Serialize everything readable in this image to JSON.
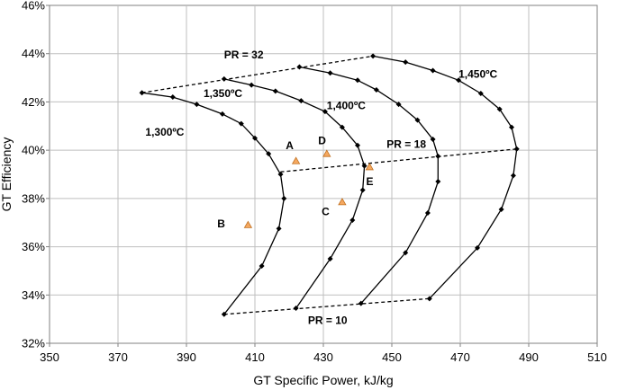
{
  "chart_data": {
    "type": "line",
    "title": "",
    "xlabel": "GT Specific Power, kJ/kg",
    "ylabel": "GT Efficiency",
    "xlim": [
      350,
      510
    ],
    "ylim": [
      32,
      46
    ],
    "xticks": [
      350,
      370,
      390,
      410,
      430,
      450,
      470,
      490,
      510
    ],
    "yticks": [
      32,
      34,
      36,
      38,
      40,
      42,
      44,
      46
    ],
    "xtick_labels": [
      "350",
      "370",
      "390",
      "410",
      "430",
      "450",
      "470",
      "490",
      "510"
    ],
    "ytick_labels": [
      "32%",
      "34%",
      "36%",
      "38%",
      "40%",
      "42%",
      "44%",
      "46%"
    ],
    "grid": true,
    "legend": "none",
    "series": [
      {
        "label": "1,300ºC",
        "label_pos": [
          378,
          40.6
        ],
        "style": "solid-diamond",
        "points": [
          [
            377,
            42.38
          ],
          [
            386,
            42.2
          ],
          [
            393,
            41.9
          ],
          [
            400.5,
            41.5
          ],
          [
            406,
            41.1
          ],
          [
            410,
            40.5
          ],
          [
            414,
            39.85
          ],
          [
            417.5,
            39.0
          ],
          [
            418.5,
            38.0
          ],
          [
            417,
            36.75
          ],
          [
            412,
            35.2
          ],
          [
            401,
            33.2
          ]
        ]
      },
      {
        "label": "1,350ºC",
        "label_pos": [
          395,
          42.2
        ],
        "style": "solid-diamond",
        "points": [
          [
            401,
            42.95
          ],
          [
            409,
            42.7
          ],
          [
            416,
            42.45
          ],
          [
            423.5,
            42.05
          ],
          [
            430.5,
            41.6
          ],
          [
            435.5,
            40.95
          ],
          [
            440,
            40.2
          ],
          [
            442,
            39.35
          ],
          [
            441.5,
            38.35
          ],
          [
            438.5,
            37.1
          ],
          [
            432,
            35.5
          ],
          [
            422,
            33.45
          ]
        ]
      },
      {
        "label": "1,400ºC",
        "label_pos": [
          431,
          41.7
        ],
        "style": "solid-diamond",
        "points": [
          [
            423,
            43.45
          ],
          [
            432,
            43.2
          ],
          [
            440,
            42.9
          ],
          [
            445.5,
            42.5
          ],
          [
            452,
            41.9
          ],
          [
            457.5,
            41.25
          ],
          [
            462,
            40.45
          ],
          [
            463.5,
            39.75
          ],
          [
            463.5,
            38.7
          ],
          [
            460.5,
            37.4
          ],
          [
            454,
            35.75
          ],
          [
            441,
            33.65
          ]
        ]
      },
      {
        "label": "1,450ºC",
        "label_pos": [
          469.5,
          43.0
        ],
        "style": "solid-diamond",
        "points": [
          [
            444.5,
            43.9
          ],
          [
            454,
            43.65
          ],
          [
            462,
            43.3
          ],
          [
            469.5,
            42.9
          ],
          [
            476,
            42.35
          ],
          [
            481.5,
            41.7
          ],
          [
            485,
            40.95
          ],
          [
            486.5,
            40.05
          ],
          [
            485.5,
            38.95
          ],
          [
            482,
            37.55
          ],
          [
            475,
            35.95
          ],
          [
            461,
            33.85
          ]
        ]
      },
      {
        "label": "PR = 32",
        "label_pos": [
          401,
          43.8
        ],
        "style": "dashed",
        "points": [
          [
            377,
            42.38
          ],
          [
            444.5,
            43.9
          ]
        ]
      },
      {
        "label": "PR = 18",
        "label_pos": [
          448.5,
          40.1
        ],
        "style": "dashed",
        "points": [
          [
            417.5,
            39.1
          ],
          [
            486.5,
            40.05
          ]
        ]
      },
      {
        "label": "PR = 10",
        "label_pos": [
          425.5,
          32.8
        ],
        "style": "dashed",
        "points": [
          [
            401,
            33.2
          ],
          [
            461,
            33.85
          ]
        ]
      }
    ],
    "annotations": [
      {
        "label": "A",
        "x": 422,
        "y": 39.55,
        "label_pos": [
          419,
          40.05
        ]
      },
      {
        "label": "B",
        "x": 408,
        "y": 36.9,
        "label_pos": [
          399,
          36.8
        ]
      },
      {
        "label": "C",
        "x": 435.5,
        "y": 37.85,
        "label_pos": [
          429.5,
          37.3
        ]
      },
      {
        "label": "D",
        "x": 431,
        "y": 39.85,
        "label_pos": [
          428.5,
          40.25
        ]
      },
      {
        "label": "E",
        "x": 443.5,
        "y": 39.3,
        "label_pos": [
          442.5,
          38.55
        ]
      }
    ],
    "colors": {
      "line": "#000000",
      "grid": "#bfbfbf",
      "marker": "#f5a860",
      "marker_edge": "#c07020"
    }
  }
}
